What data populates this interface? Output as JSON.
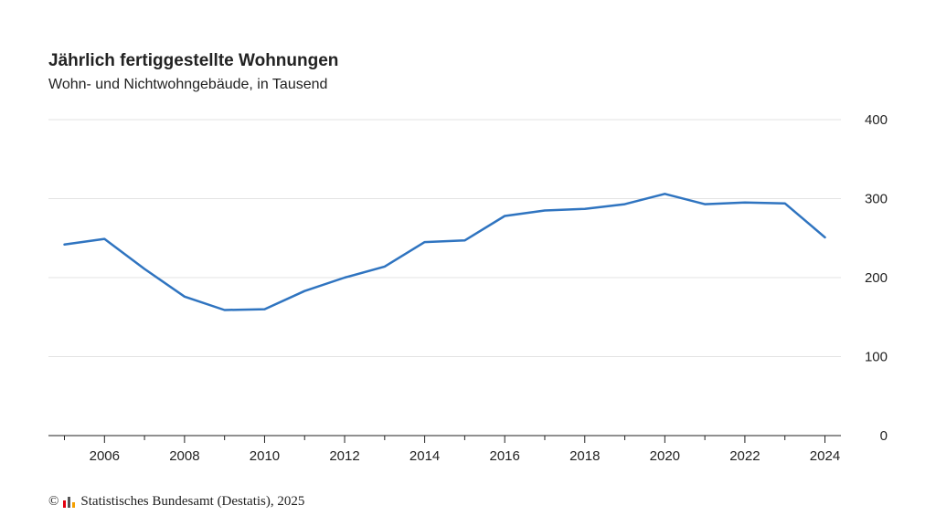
{
  "chart_data": {
    "type": "line",
    "title": "Jährlich fertiggestellte Wohnungen",
    "subtitle": "Wohn- und Nichtwohngebäude, in Tausend",
    "x": [
      2005,
      2006,
      2007,
      2008,
      2009,
      2010,
      2011,
      2012,
      2013,
      2014,
      2015,
      2016,
      2017,
      2018,
      2019,
      2020,
      2021,
      2022,
      2023,
      2024
    ],
    "series": [
      {
        "values": [
          242,
          249,
          211,
          176,
          159,
          160,
          183,
          200,
          214,
          245,
          247,
          278,
          285,
          287,
          293,
          306,
          293,
          295,
          294,
          251
        ],
        "color": "#2f74c0"
      }
    ],
    "xticks": [
      "2006",
      "2008",
      "2010",
      "2012",
      "2014",
      "2016",
      "2018",
      "2020",
      "2022",
      "2024"
    ],
    "yticks": [
      "0",
      "100",
      "200",
      "300",
      "400"
    ],
    "ylim": [
      0,
      400
    ],
    "xlim": [
      2004.6,
      2024.4
    ],
    "grid": true,
    "y_axis_side": "right"
  },
  "footer": {
    "copyright_symbol": "©",
    "source": "Statistisches Bundesamt (Destatis), 2025"
  }
}
